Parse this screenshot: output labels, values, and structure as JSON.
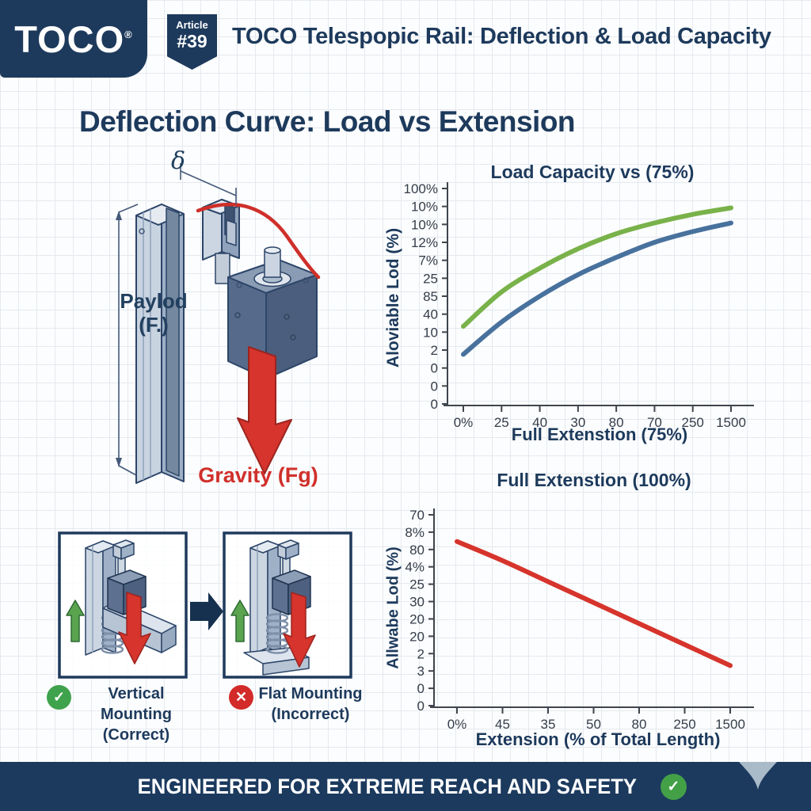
{
  "colors": {
    "navy": "#1d3a5c",
    "red_accent": "#cf2f2a",
    "curve_green": "#79b24a",
    "curve_blue": "#48719d",
    "success_green": "#3fa24c",
    "error_red": "#d32a2a",
    "steel_light": "#c9d4e1",
    "decor_gray": "#a9bac9"
  },
  "header": {
    "logo_text": "TOCO",
    "logo_reg": "®",
    "badge": {
      "line1": "Article",
      "line2": "#39"
    },
    "title": "TOCO Telespopic Rail: Deflection & Load Capacity"
  },
  "main": {
    "heading": "Deflection Curve: Load vs Extension"
  },
  "illustration": {
    "deflection_symbol": "δ",
    "payload_label": "Paylod",
    "payload_sub": "(F.)",
    "gravity_label": "Gravity (Fg)"
  },
  "mounting": {
    "left": {
      "icon_glyph": "✓",
      "label": "Vertical Mounting",
      "sub": "(Correct)"
    },
    "right": {
      "icon_glyph": "✕",
      "label": "Flat Mounting",
      "sub": "(Incorrect)"
    }
  },
  "footer": {
    "banner_text": "ENGINEERED FOR EXTREME REACH AND SAFETY",
    "check_glyph": "✓"
  },
  "chart_data": [
    {
      "type": "line",
      "title": "Load Capacity vs (75%)",
      "xlabel": "Full Extenstion (75%)",
      "ylabel": "Aloviable Lod (%)",
      "x_ticks": [
        "0%",
        "25",
        "40",
        "30",
        "80",
        "70",
        "250",
        "1500"
      ],
      "y_ticks_top_to_bottom": [
        "100%",
        "10%",
        "10%",
        "12%",
        "7%",
        "25",
        "85",
        "40",
        "10",
        "2",
        "0",
        "0",
        "0"
      ],
      "grid": true,
      "legend": "none",
      "note": "Axis tick labels transcribed as printed; series values estimated as percent of plot height (0=bottom axis, 100=top tick), sampled at each x tick.",
      "series": [
        {
          "name": "upper-curve",
          "color": "#79b24a",
          "values_pct_of_axis": [
            36,
            52,
            63,
            72,
            79,
            84,
            88,
            91
          ]
        },
        {
          "name": "lower-curve",
          "color": "#48719d",
          "values_pct_of_axis": [
            23,
            38,
            50,
            60,
            68,
            75,
            80,
            84
          ]
        }
      ]
    },
    {
      "type": "line",
      "title": "Full Extenstion (100%)",
      "xlabel": "Extension (% of Total Length)",
      "ylabel": "Allwabe Lod (%)",
      "x_ticks": [
        "0%",
        "45",
        "35",
        "50",
        "80",
        "250",
        "1500"
      ],
      "y_ticks_top_to_bottom": [
        "70",
        "8%",
        "80",
        "4%",
        "25",
        "30",
        "20",
        "20",
        "2",
        "3",
        "0",
        "0"
      ],
      "grid": true,
      "legend": "none",
      "note": "Axis tick labels transcribed as printed; series values estimated as percent of plot height, sampled at each x tick.",
      "series": [
        {
          "name": "allowable-load-curve",
          "color": "#d6342c",
          "values_pct_of_axis": [
            86,
            76,
            65,
            54,
            43,
            32,
            21
          ]
        }
      ]
    }
  ]
}
